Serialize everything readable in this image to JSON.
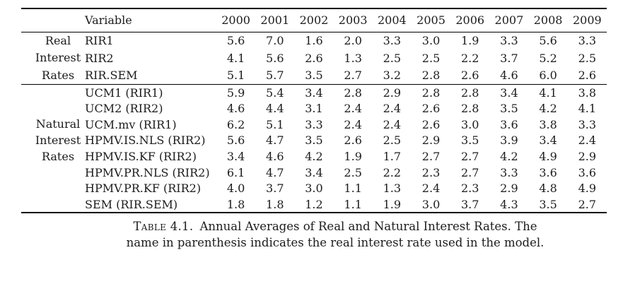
{
  "colors": {
    "background": "#ffffff",
    "text": "#1c1c1c",
    "rule": "#000000"
  },
  "table": {
    "header": {
      "variable_label": "Variable",
      "years": [
        "2000",
        "2001",
        "2002",
        "2003",
        "2004",
        "2005",
        "2006",
        "2007",
        "2008",
        "2009"
      ]
    },
    "groups": [
      {
        "label_lines": [
          "Real",
          "Interest",
          "Rates"
        ],
        "rows": [
          {
            "variable": "RIR1",
            "values": [
              "5.6",
              "7.0",
              "1.6",
              "2.0",
              "3.3",
              "3.0",
              "1.9",
              "3.3",
              "5.6",
              "3.3"
            ]
          },
          {
            "variable": "RIR2",
            "values": [
              "4.1",
              "5.6",
              "2.6",
              "1.3",
              "2.5",
              "2.5",
              "2.2",
              "3.7",
              "5.2",
              "2.5"
            ]
          },
          {
            "variable": "RIR.SEM",
            "values": [
              "5.1",
              "5.7",
              "3.5",
              "2.7",
              "3.2",
              "2.8",
              "2.6",
              "4.6",
              "6.0",
              "2.6"
            ]
          }
        ]
      },
      {
        "label_lines": [
          "Natural",
          "Interest",
          "Rates"
        ],
        "rows": [
          {
            "variable": "UCM1 (RIR1)",
            "values": [
              "5.9",
              "5.4",
              "3.4",
              "2.8",
              "2.9",
              "2.8",
              "2.8",
              "3.4",
              "4.1",
              "3.8"
            ]
          },
          {
            "variable": "UCM2 (RIR2)",
            "values": [
              "4.6",
              "4.4",
              "3.1",
              "2.4",
              "2.4",
              "2.6",
              "2.8",
              "3.5",
              "4.2",
              "4.1"
            ]
          },
          {
            "variable": "UCM.mv (RIR1)",
            "values": [
              "6.2",
              "5.1",
              "3.3",
              "2.4",
              "2.4",
              "2.6",
              "3.0",
              "3.6",
              "3.8",
              "3.3"
            ]
          },
          {
            "variable": "HPMV.IS.NLS (RIR2)",
            "values": [
              "5.6",
              "4.7",
              "3.5",
              "2.6",
              "2.5",
              "2.9",
              "3.5",
              "3.9",
              "3.4",
              "2.4"
            ]
          },
          {
            "variable": "HPMV.IS.KF (RIR2)",
            "values": [
              "3.4",
              "4.6",
              "4.2",
              "1.9",
              "1.7",
              "2.7",
              "2.7",
              "4.2",
              "4.9",
              "2.9"
            ]
          },
          {
            "variable": "HPMV.PR.NLS (RIR2)",
            "values": [
              "6.1",
              "4.7",
              "3.4",
              "2.5",
              "2.2",
              "2.3",
              "2.7",
              "3.3",
              "3.6",
              "3.6"
            ]
          },
          {
            "variable": "HPMV.PR.KF (RIR2)",
            "values": [
              "4.0",
              "3.7",
              "3.0",
              "1.1",
              "1.3",
              "2.4",
              "2.3",
              "2.9",
              "4.8",
              "4.9"
            ]
          },
          {
            "variable": "SEM (RIR.SEM)",
            "values": [
              "1.8",
              "1.8",
              "1.2",
              "1.1",
              "1.9",
              "3.0",
              "3.7",
              "4.3",
              "3.5",
              "2.7"
            ]
          }
        ]
      }
    ],
    "caption": {
      "label": "Table 4.1.",
      "line1_rest": "Annual Averages of Real and Natural Interest Rates. The",
      "line2": "name in parenthesis indicates the real interest rate used in the model."
    }
  }
}
